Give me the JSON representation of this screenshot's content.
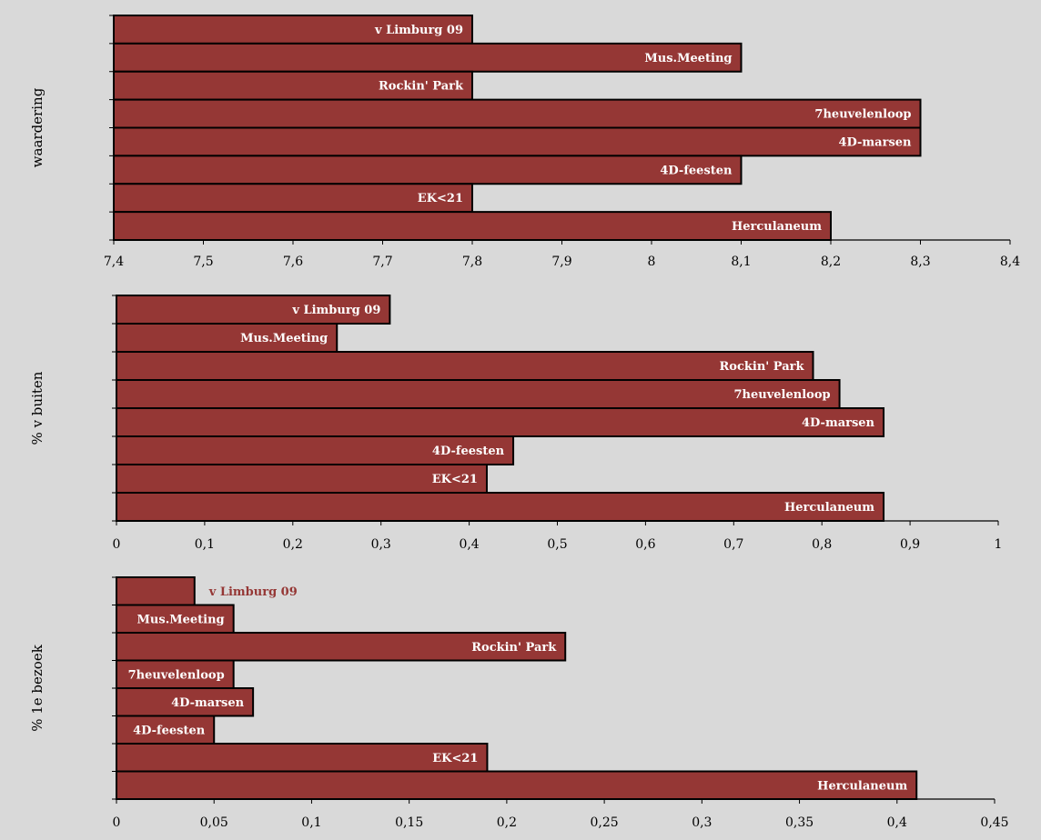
{
  "colors": {
    "bar_fill": "#953735",
    "bar_stroke": "#000000",
    "label_inside": "#ffffff",
    "label_outside": "#953735",
    "background": "#d9d9d9"
  },
  "chart_data": [
    {
      "type": "bar",
      "orientation": "horizontal",
      "ylabel": "waardering",
      "xlabel": "",
      "xlim": [
        7.4,
        8.4
      ],
      "xticks": [
        "7,4",
        "7,5",
        "7,6",
        "7,7",
        "7,8",
        "7,9",
        "8",
        "8,1",
        "8,2",
        "8,3",
        "8,4"
      ],
      "categories": [
        "v Limburg 09",
        "Mus.Meeting",
        "Rockin' Park",
        "7heuvelenloop",
        "4D-marsen",
        "4D-feesten",
        "EK<21",
        "Herculaneum"
      ],
      "values": [
        7.8,
        8.1,
        7.8,
        8.3,
        8.3,
        8.1,
        7.8,
        8.2
      ],
      "legend": false,
      "grid": false
    },
    {
      "type": "bar",
      "orientation": "horizontal",
      "ylabel": "% v buiten",
      "xlabel": "",
      "xlim": [
        0,
        1
      ],
      "xticks": [
        "0",
        "0,1",
        "0,2",
        "0,3",
        "0,4",
        "0,5",
        "0,6",
        "0,7",
        "0,8",
        "0,9",
        "1"
      ],
      "categories": [
        "v Limburg 09",
        "Mus.Meeting",
        "Rockin' Park",
        "7heuvelenloop",
        "4D-marsen",
        "4D-feesten",
        "EK<21",
        "Herculaneum"
      ],
      "values": [
        0.31,
        0.25,
        0.79,
        0.82,
        0.87,
        0.45,
        0.42,
        0.87
      ],
      "legend": false,
      "grid": false
    },
    {
      "type": "bar",
      "orientation": "horizontal",
      "ylabel": "% 1e bezoek",
      "xlabel": "",
      "xlim": [
        0,
        0.45
      ],
      "xticks": [
        "0",
        "0,05",
        "0,1",
        "0,15",
        "0,2",
        "0,25",
        "0,3",
        "0,35",
        "0,4",
        "0,45"
      ],
      "categories": [
        "v Limburg 09",
        "Mus.Meeting",
        "Rockin' Park",
        "7heuvelenloop",
        "4D-marsen",
        "4D-feesten",
        "EK<21",
        "Herculaneum"
      ],
      "values": [
        0.04,
        0.06,
        0.23,
        0.06,
        0.07,
        0.05,
        0.19,
        0.41
      ],
      "legend": false,
      "grid": false
    }
  ]
}
